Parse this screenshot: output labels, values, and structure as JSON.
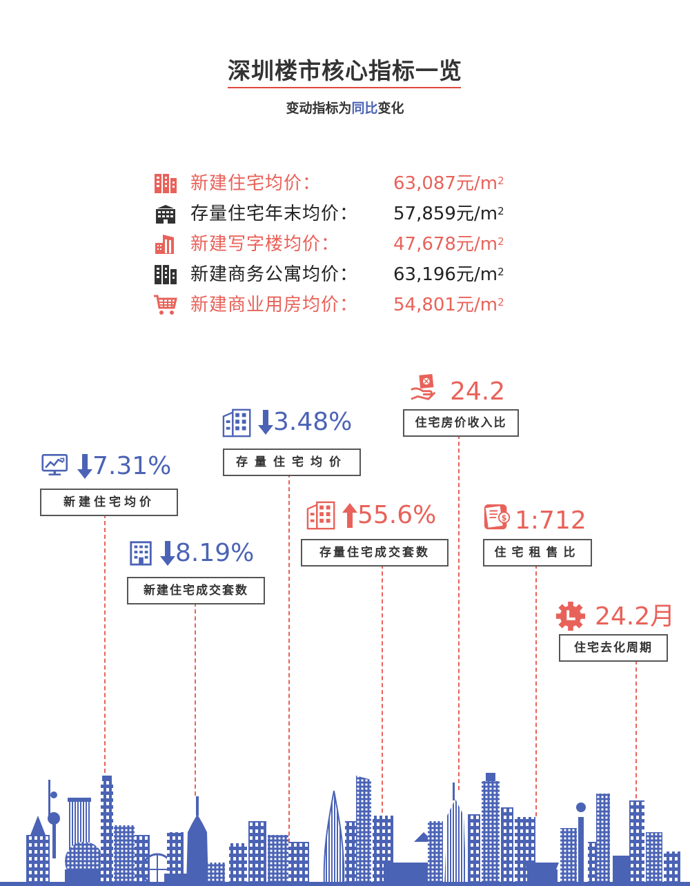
{
  "header": {
    "title": "深圳楼市核心指标一览",
    "subtitle_prefix": "变动指标为",
    "subtitle_highlight": "同比",
    "subtitle_suffix": "变化"
  },
  "prices": [
    {
      "label": "新建住宅均价：",
      "value": "63,087元/m",
      "unit_sup": "2",
      "color": "#e8625a",
      "icon": "apartment-building-icon"
    },
    {
      "label": "存量住宅年末均价：",
      "value": "57,859元/m",
      "unit_sup": "2",
      "color": "#222222",
      "icon": "office-block-icon"
    },
    {
      "label": "新建写字楼均价：",
      "value": "47,678元/m",
      "unit_sup": "2",
      "color": "#e8625a",
      "icon": "office-tower-icon"
    },
    {
      "label": "新建商务公寓均价：",
      "value": "63,196元/m",
      "unit_sup": "2",
      "color": "#222222",
      "icon": "apartment-building-icon"
    },
    {
      "label": "新建商业用房均价：",
      "value": "54,801元/m",
      "unit_sup": "2",
      "color": "#e8625a",
      "icon": "shopping-cart-icon"
    }
  ],
  "indicators": [
    {
      "label": "新建住宅均价",
      "value": "7.31%",
      "direction": "down",
      "color": "#4b63b5",
      "icon": "chart-monitor-icon"
    },
    {
      "label": "新建住宅成交套数",
      "value": "8.19%",
      "direction": "down",
      "color": "#4b63b5",
      "icon": "building-icon"
    },
    {
      "label": "存量住宅均价",
      "value": "3.48%",
      "direction": "down",
      "color": "#4b63b5",
      "icon": "building-icon"
    },
    {
      "label": "存量住宅成交套数",
      "value": "55.6%",
      "direction": "up",
      "color": "#e8625a",
      "icon": "building-icon"
    },
    {
      "label": "住宅房价收入比",
      "value": "24.2",
      "direction": "none",
      "color": "#e8625a",
      "icon": "money-hand-icon"
    },
    {
      "label": "住宅租售比",
      "value": "1:712",
      "direction": "none",
      "color": "#e8625a",
      "icon": "wallet-icon"
    },
    {
      "label": "住宅去化周期",
      "value": "24.2月",
      "direction": "none",
      "color": "#e8625a",
      "icon": "clock-gear-icon"
    }
  ],
  "colors": {
    "accent_red": "#e8625a",
    "accent_blue": "#4b63b5",
    "skyline_blue": "#4b63b5"
  }
}
